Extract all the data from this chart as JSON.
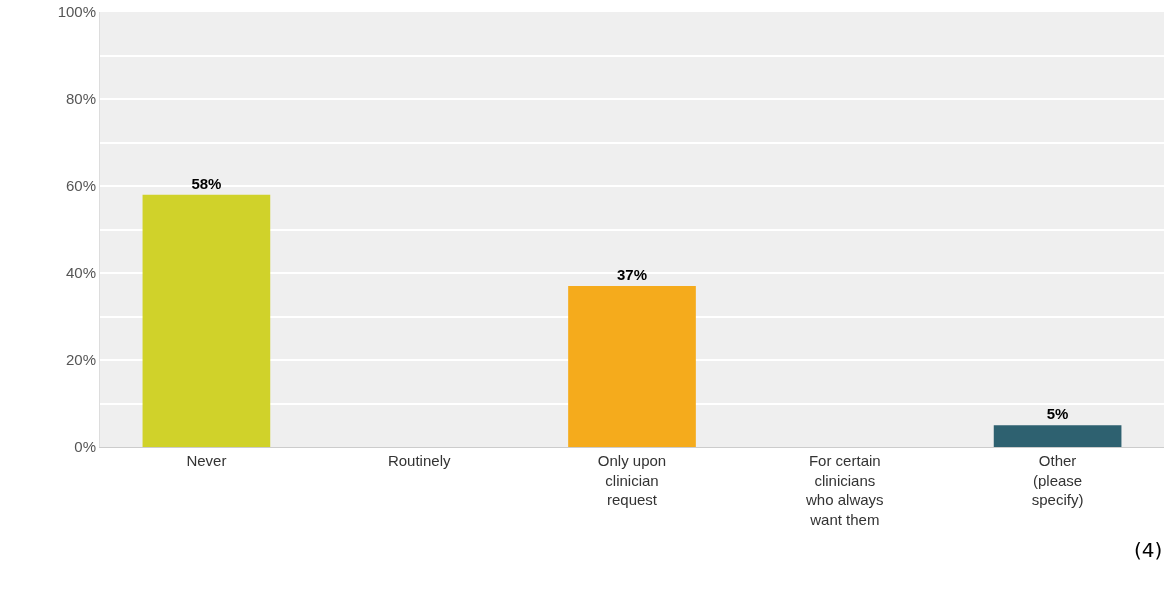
{
  "chart_data": {
    "type": "bar",
    "categories": [
      "Never",
      "Routinely",
      "Only upon clinician request",
      "For certain clinicians who always want them",
      "Other (please specify)"
    ],
    "values": [
      58,
      0,
      37,
      0,
      5
    ],
    "colors": [
      "#d0d22a",
      "#a0a0a0",
      "#f5ab1c",
      "#a0a0a0",
      "#2e6170"
    ],
    "value_labels": [
      "58%",
      null,
      "37%",
      null,
      "5%"
    ],
    "ylim": [
      0,
      100
    ],
    "yticks": [
      {
        "value": 0,
        "label": "0%"
      },
      {
        "value": 10,
        "label": null
      },
      {
        "value": 20,
        "label": "20%"
      },
      {
        "value": 30,
        "label": null
      },
      {
        "value": 40,
        "label": "40%"
      },
      {
        "value": 50,
        "label": null
      },
      {
        "value": 60,
        "label": "60%"
      },
      {
        "value": 70,
        "label": null
      },
      {
        "value": 80,
        "label": "80%"
      },
      {
        "value": 90,
        "label": null
      },
      {
        "value": 100,
        "label": "100%"
      }
    ],
    "grid": "y",
    "annotations": [
      "(4)"
    ]
  }
}
